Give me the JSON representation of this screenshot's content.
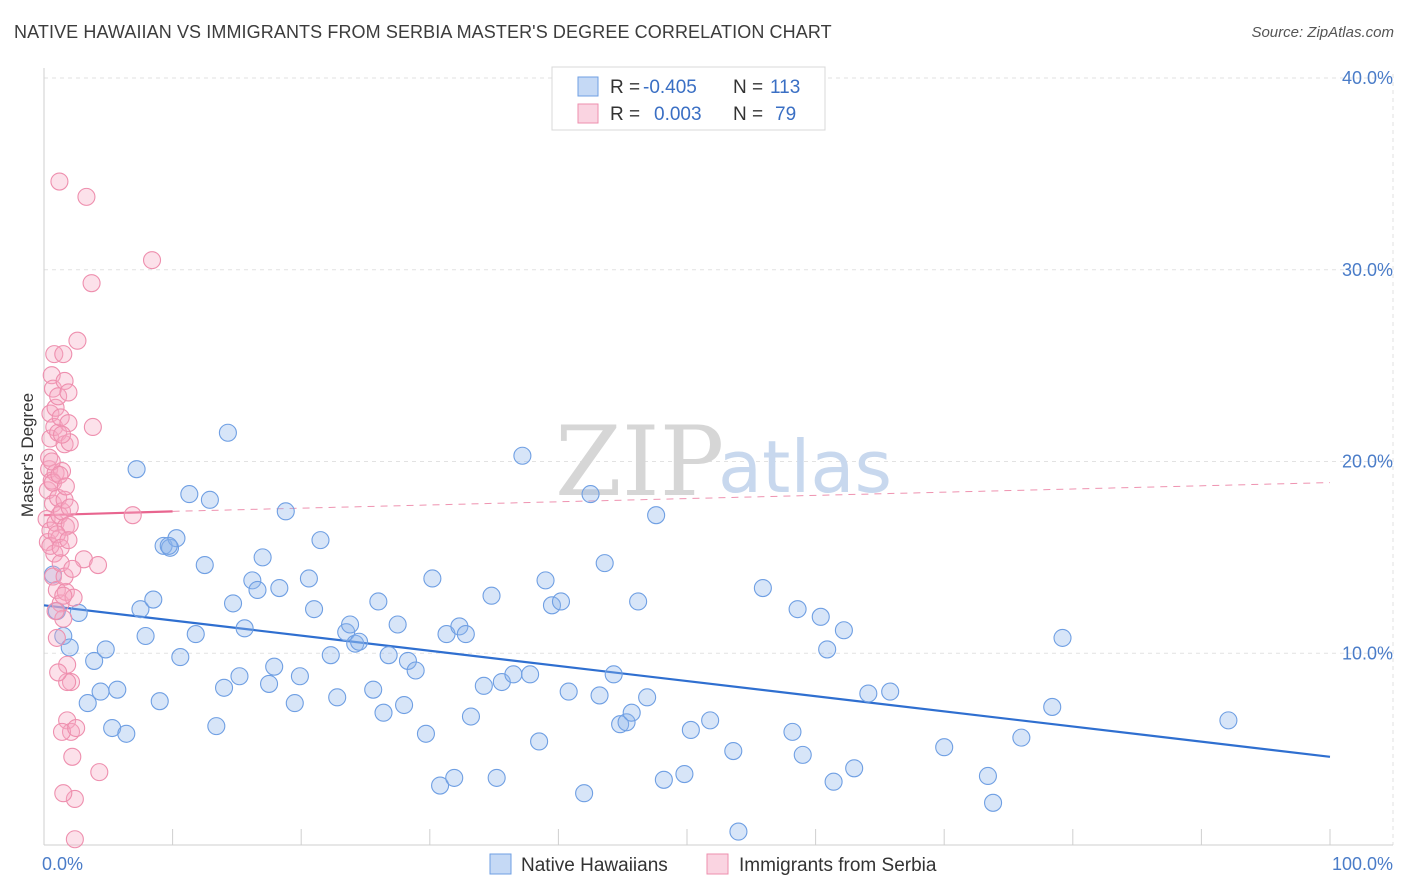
{
  "title": "NATIVE HAWAIIAN VS IMMIGRANTS FROM SERBIA MASTER'S DEGREE CORRELATION CHART",
  "source": "Source: ZipAtlas.com",
  "watermark": {
    "zip": "ZIP",
    "atlas": "atlas"
  },
  "colors": {
    "blue": "#6f9fe3",
    "blue_fill": "rgba(140,180,235,0.35)",
    "blue_line": "#2f6fd0",
    "pink": "#ee8fae",
    "pink_fill": "rgba(245,170,195,0.35)",
    "pink_line": "#e8658f",
    "axis_text": "#4a7cc8",
    "grid": "#e2e2e2"
  },
  "legend": {
    "rows": [
      {
        "r_label": "R =",
        "r_value": "-0.405",
        "n_label": "N =",
        "n_value": "113"
      },
      {
        "r_label": "R =",
        "r_value": "0.003",
        "n_label": "N =",
        "n_value": "79"
      }
    ]
  },
  "chart_data": {
    "type": "scatter",
    "xlabel": "",
    "ylabel": "Master's Degree",
    "xlim": [
      0,
      100
    ],
    "ylim": [
      0,
      40
    ],
    "x_ticks": [
      "0.0%",
      "100.0%"
    ],
    "y_ticks": [
      "10.0%",
      "20.0%",
      "30.0%",
      "40.0%"
    ],
    "y_tick_values": [
      10,
      20,
      30,
      40
    ],
    "grid": true,
    "legend_position": "top-center",
    "series": [
      {
        "name": "Native Hawaiians",
        "color": "#6f9fe3",
        "trend": {
          "x": [
            0,
            100
          ],
          "y": [
            12.5,
            4.6
          ],
          "style": "solid"
        },
        "points": [
          [
            0.7,
            14.1
          ],
          [
            1.0,
            12.2
          ],
          [
            1.5,
            10.9
          ],
          [
            2.0,
            10.3
          ],
          [
            2.7,
            12.1
          ],
          [
            3.4,
            7.4
          ],
          [
            3.9,
            9.6
          ],
          [
            4.4,
            8.0
          ],
          [
            4.8,
            10.2
          ],
          [
            5.3,
            6.1
          ],
          [
            5.7,
            8.1
          ],
          [
            6.4,
            5.8
          ],
          [
            7.2,
            19.6
          ],
          [
            7.5,
            12.3
          ],
          [
            7.9,
            10.9
          ],
          [
            8.5,
            12.8
          ],
          [
            9.0,
            7.5
          ],
          [
            9.3,
            15.6
          ],
          [
            9.8,
            15.5
          ],
          [
            10.3,
            16.0
          ],
          [
            10.6,
            9.8
          ],
          [
            11.3,
            18.3
          ],
          [
            11.8,
            11.0
          ],
          [
            12.5,
            14.6
          ],
          [
            12.9,
            18.0
          ],
          [
            13.4,
            6.2
          ],
          [
            14.0,
            8.2
          ],
          [
            14.3,
            21.5
          ],
          [
            14.7,
            12.6
          ],
          [
            15.2,
            8.8
          ],
          [
            15.6,
            11.3
          ],
          [
            16.2,
            13.8
          ],
          [
            16.6,
            13.3
          ],
          [
            17.0,
            15.0
          ],
          [
            17.5,
            8.4
          ],
          [
            17.9,
            9.3
          ],
          [
            18.3,
            13.4
          ],
          [
            18.8,
            17.4
          ],
          [
            19.5,
            7.4
          ],
          [
            19.9,
            8.8
          ],
          [
            20.6,
            13.9
          ],
          [
            21.0,
            12.3
          ],
          [
            21.5,
            15.9
          ],
          [
            22.3,
            9.9
          ],
          [
            22.8,
            7.7
          ],
          [
            23.5,
            11.1
          ],
          [
            23.8,
            11.5
          ],
          [
            24.2,
            10.5
          ],
          [
            24.5,
            10.6
          ],
          [
            25.6,
            8.1
          ],
          [
            26.0,
            12.7
          ],
          [
            26.4,
            6.9
          ],
          [
            26.8,
            9.9
          ],
          [
            27.5,
            11.5
          ],
          [
            28.0,
            7.3
          ],
          [
            28.3,
            9.6
          ],
          [
            28.9,
            9.1
          ],
          [
            29.7,
            5.8
          ],
          [
            30.2,
            13.9
          ],
          [
            30.8,
            3.1
          ],
          [
            31.3,
            11.0
          ],
          [
            31.9,
            3.5
          ],
          [
            32.3,
            11.4
          ],
          [
            32.8,
            11.0
          ],
          [
            33.2,
            6.7
          ],
          [
            34.2,
            8.3
          ],
          [
            34.8,
            13.0
          ],
          [
            35.2,
            3.5
          ],
          [
            35.6,
            8.5
          ],
          [
            36.5,
            8.9
          ],
          [
            37.2,
            20.3
          ],
          [
            37.8,
            8.9
          ],
          [
            38.5,
            5.4
          ],
          [
            39.0,
            13.8
          ],
          [
            39.5,
            12.5
          ],
          [
            40.2,
            12.7
          ],
          [
            40.8,
            8.0
          ],
          [
            42.0,
            2.7
          ],
          [
            42.5,
            18.3
          ],
          [
            43.2,
            7.8
          ],
          [
            43.6,
            14.7
          ],
          [
            44.3,
            8.9
          ],
          [
            44.8,
            6.3
          ],
          [
            45.3,
            6.4
          ],
          [
            45.7,
            6.9
          ],
          [
            46.2,
            12.7
          ],
          [
            46.9,
            7.7
          ],
          [
            47.6,
            17.2
          ],
          [
            48.2,
            3.4
          ],
          [
            49.8,
            3.7
          ],
          [
            50.3,
            6.0
          ],
          [
            51.8,
            6.5
          ],
          [
            53.6,
            4.9
          ],
          [
            54.0,
            0.7
          ],
          [
            55.9,
            13.4
          ],
          [
            58.2,
            5.9
          ],
          [
            58.6,
            12.3
          ],
          [
            59.0,
            4.7
          ],
          [
            60.4,
            11.9
          ],
          [
            60.9,
            10.2
          ],
          [
            61.4,
            3.3
          ],
          [
            62.2,
            11.2
          ],
          [
            63.0,
            4.0
          ],
          [
            64.1,
            7.9
          ],
          [
            65.8,
            8.0
          ],
          [
            70.0,
            5.1
          ],
          [
            73.4,
            3.6
          ],
          [
            73.8,
            2.2
          ],
          [
            76.0,
            5.6
          ],
          [
            78.4,
            7.2
          ],
          [
            79.2,
            10.8
          ],
          [
            92.1,
            6.5
          ],
          [
            9.7,
            15.6
          ]
        ]
      },
      {
        "name": "Immigrants from Serbia",
        "color": "#ee8fae",
        "trend": {
          "x": [
            0,
            10
          ],
          "y": [
            17.2,
            17.4
          ],
          "style": "solid",
          "extended": {
            "x": [
              10,
              100
            ],
            "y": [
              17.4,
              18.9
            ],
            "style": "dashed"
          }
        },
        "points": [
          [
            0.2,
            17.0
          ],
          [
            0.3,
            15.8
          ],
          [
            0.3,
            18.5
          ],
          [
            0.4,
            19.6
          ],
          [
            0.4,
            20.2
          ],
          [
            0.5,
            21.2
          ],
          [
            0.5,
            22.5
          ],
          [
            0.5,
            16.4
          ],
          [
            0.6,
            24.5
          ],
          [
            0.6,
            19.0
          ],
          [
            0.7,
            23.8
          ],
          [
            0.7,
            17.8
          ],
          [
            0.7,
            14.0
          ],
          [
            0.8,
            25.6
          ],
          [
            0.8,
            21.8
          ],
          [
            0.8,
            15.2
          ],
          [
            0.9,
            22.8
          ],
          [
            0.9,
            19.4
          ],
          [
            0.9,
            16.8
          ],
          [
            1.0,
            13.3
          ],
          [
            1.0,
            10.8
          ],
          [
            1.1,
            18.1
          ],
          [
            1.1,
            23.4
          ],
          [
            1.1,
            21.5
          ],
          [
            1.2,
            17.2
          ],
          [
            1.2,
            16.0
          ],
          [
            1.3,
            14.7
          ],
          [
            1.3,
            12.6
          ],
          [
            1.3,
            22.3
          ],
          [
            1.4,
            19.5
          ],
          [
            1.4,
            17.4
          ],
          [
            1.5,
            25.6
          ],
          [
            1.5,
            11.8
          ],
          [
            1.6,
            24.2
          ],
          [
            1.6,
            20.9
          ],
          [
            1.6,
            18.0
          ],
          [
            1.7,
            16.6
          ],
          [
            1.7,
            13.2
          ],
          [
            1.8,
            9.4
          ],
          [
            1.8,
            6.5
          ],
          [
            1.9,
            23.6
          ],
          [
            1.9,
            22.0
          ],
          [
            2.0,
            21.0
          ],
          [
            2.0,
            16.7
          ],
          [
            2.1,
            8.5
          ],
          [
            2.1,
            5.9
          ],
          [
            2.2,
            4.6
          ],
          [
            2.3,
            12.9
          ],
          [
            2.4,
            2.4
          ],
          [
            2.4,
            0.3
          ],
          [
            1.2,
            34.6
          ],
          [
            1.5,
            2.7
          ],
          [
            1.4,
            5.9
          ],
          [
            1.8,
            8.5
          ],
          [
            2.6,
            26.3
          ],
          [
            3.1,
            14.9
          ],
          [
            3.3,
            33.8
          ],
          [
            3.7,
            29.3
          ],
          [
            3.8,
            21.8
          ],
          [
            4.2,
            14.6
          ],
          [
            4.3,
            3.8
          ],
          [
            6.9,
            17.2
          ],
          [
            8.4,
            30.5
          ],
          [
            1.6,
            14.0
          ],
          [
            0.5,
            15.6
          ],
          [
            0.6,
            20.0
          ],
          [
            0.7,
            18.9
          ],
          [
            1.0,
            16.2
          ],
          [
            1.2,
            19.3
          ],
          [
            1.3,
            15.5
          ],
          [
            1.4,
            21.4
          ],
          [
            1.5,
            13.0
          ],
          [
            1.7,
            18.7
          ],
          [
            1.9,
            15.9
          ],
          [
            2.0,
            17.6
          ],
          [
            2.2,
            14.4
          ],
          [
            0.9,
            12.2
          ],
          [
            1.1,
            9.0
          ],
          [
            2.5,
            6.1
          ]
        ]
      }
    ]
  },
  "bottom_legend": [
    {
      "label": "Native Hawaiians"
    },
    {
      "label": "Immigrants from Serbia"
    }
  ]
}
